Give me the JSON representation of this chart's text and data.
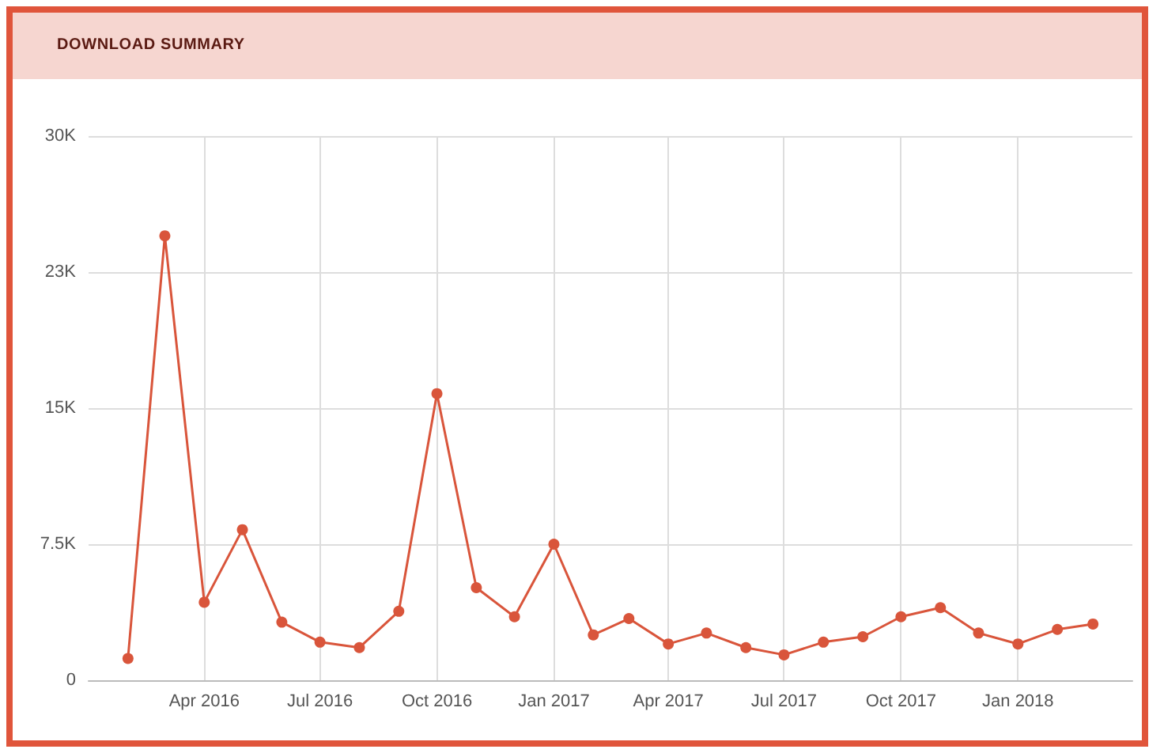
{
  "chart_data": {
    "type": "line",
    "title": "DOWNLOAD SUMMARY",
    "x": [
      "2016-02",
      "2016-03",
      "2016-04",
      "2016-05",
      "2016-06",
      "2016-07",
      "2016-08",
      "2016-09",
      "2016-10",
      "2016-11",
      "2016-12",
      "2017-01",
      "2017-02",
      "2017-03",
      "2017-04",
      "2017-05",
      "2017-06",
      "2017-07",
      "2017-08",
      "2017-09",
      "2017-10",
      "2017-11",
      "2017-12",
      "2018-01",
      "2018-02",
      "2018-03"
    ],
    "series": [
      {
        "color": "#d9553b",
        "values": [
          1200,
          24500,
          4300,
          8300,
          3200,
          2100,
          1800,
          3800,
          15800,
          5100,
          3500,
          7500,
          2500,
          3400,
          2000,
          2600,
          1800,
          1400,
          2100,
          2400,
          3500,
          4000,
          2600,
          2000,
          2800,
          3100
        ]
      }
    ],
    "xlim": [
      "2016-01",
      "2018-04"
    ],
    "xticks": [
      {
        "value": "2016-04",
        "label": "Apr 2016"
      },
      {
        "value": "2016-07",
        "label": "Jul 2016"
      },
      {
        "value": "2016-10",
        "label": "Oct 2016"
      },
      {
        "value": "2017-01",
        "label": "Jan 2017"
      },
      {
        "value": "2017-04",
        "label": "Apr 2017"
      },
      {
        "value": "2017-07",
        "label": "Jul 2017"
      },
      {
        "value": "2017-10",
        "label": "Oct 2017"
      },
      {
        "value": "2018-01",
        "label": "Jan 2018"
      }
    ],
    "ylim": [
      0,
      30000
    ],
    "yticks": [
      0,
      {
        "value": 7500,
        "label": "7.5K"
      },
      {
        "value": 15000,
        "label": "15K"
      },
      {
        "value": 22500,
        "label": "23K"
      },
      {
        "value": 30000,
        "label": "30K"
      }
    ],
    "grid": true,
    "marker": "circle",
    "line_style": "solid"
  }
}
